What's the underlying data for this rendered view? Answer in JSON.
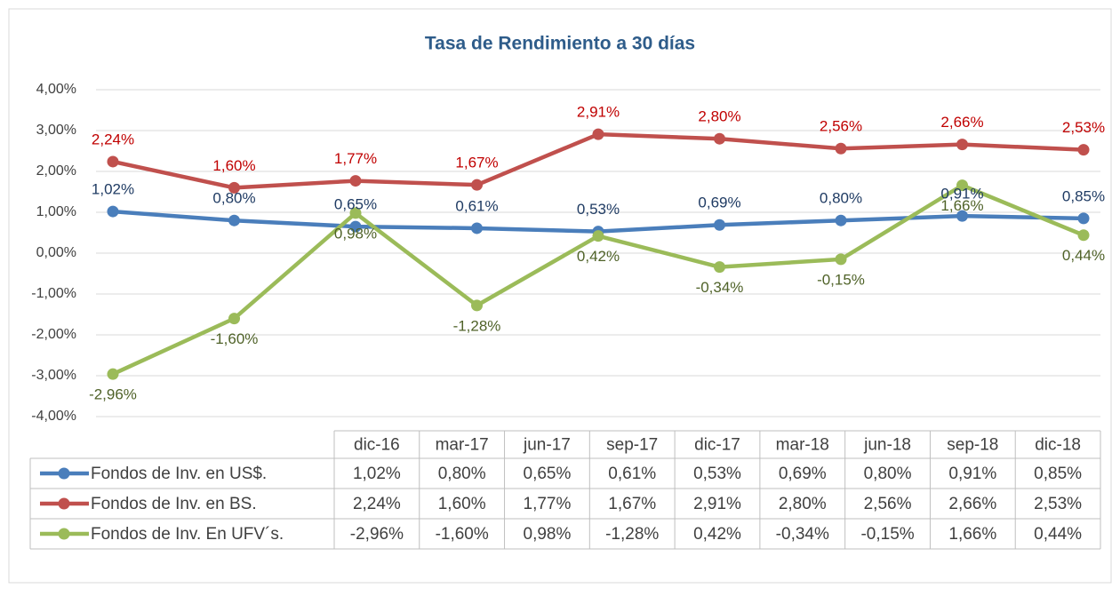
{
  "chart_data": {
    "type": "line",
    "title": "Tasa de Rendimiento a 30 días",
    "categories": [
      "dic-16",
      "mar-17",
      "jun-17",
      "sep-17",
      "dic-17",
      "mar-18",
      "jun-18",
      "sep-18",
      "dic-18"
    ],
    "series": [
      {
        "name": "Fondos de Inv. en US$.",
        "color": "#4a7ebb",
        "label_color": "#1f3b63",
        "values": [
          1.02,
          0.8,
          0.65,
          0.61,
          0.53,
          0.69,
          0.8,
          0.91,
          0.85
        ],
        "value_labels": [
          "1,02%",
          "0,80%",
          "0,65%",
          "0,61%",
          "0,53%",
          "0,69%",
          "0,80%",
          "0,91%",
          "0,85%"
        ]
      },
      {
        "name": "Fondos de Inv. en BS.",
        "color": "#c0504d",
        "label_color": "#c00000",
        "values": [
          2.24,
          1.6,
          1.77,
          1.67,
          2.91,
          2.8,
          2.56,
          2.66,
          2.53
        ],
        "value_labels": [
          "2,24%",
          "1,60%",
          "1,77%",
          "1,67%",
          "2,91%",
          "2,80%",
          "2,56%",
          "2,66%",
          "2,53%"
        ]
      },
      {
        "name": "Fondos de Inv. En UFV´s.",
        "color": "#9bbb59",
        "label_color": "#4f6228",
        "values": [
          -2.96,
          -1.6,
          0.98,
          -1.28,
          0.42,
          -0.34,
          -0.15,
          1.66,
          0.44
        ],
        "value_labels": [
          "-2,96%",
          "-1,60%",
          "0,98%",
          "-1,28%",
          "0,42%",
          "-0,34%",
          "-0,15%",
          "1,66%",
          "0,44%"
        ]
      }
    ],
    "ylim": [
      -4,
      4
    ],
    "yticks": [
      {
        "value": -4,
        "label": "-4,00%"
      },
      {
        "value": -3,
        "label": "-3,00%"
      },
      {
        "value": -2,
        "label": "-2,00%"
      },
      {
        "value": -1,
        "label": "-1,00%"
      },
      {
        "value": 0,
        "label": "0,00%"
      },
      {
        "value": 1,
        "label": "1,00%"
      },
      {
        "value": 2,
        "label": "2,00%"
      },
      {
        "value": 3,
        "label": "3,00%"
      },
      {
        "value": 4,
        "label": "4,00%"
      }
    ],
    "grid": true
  }
}
